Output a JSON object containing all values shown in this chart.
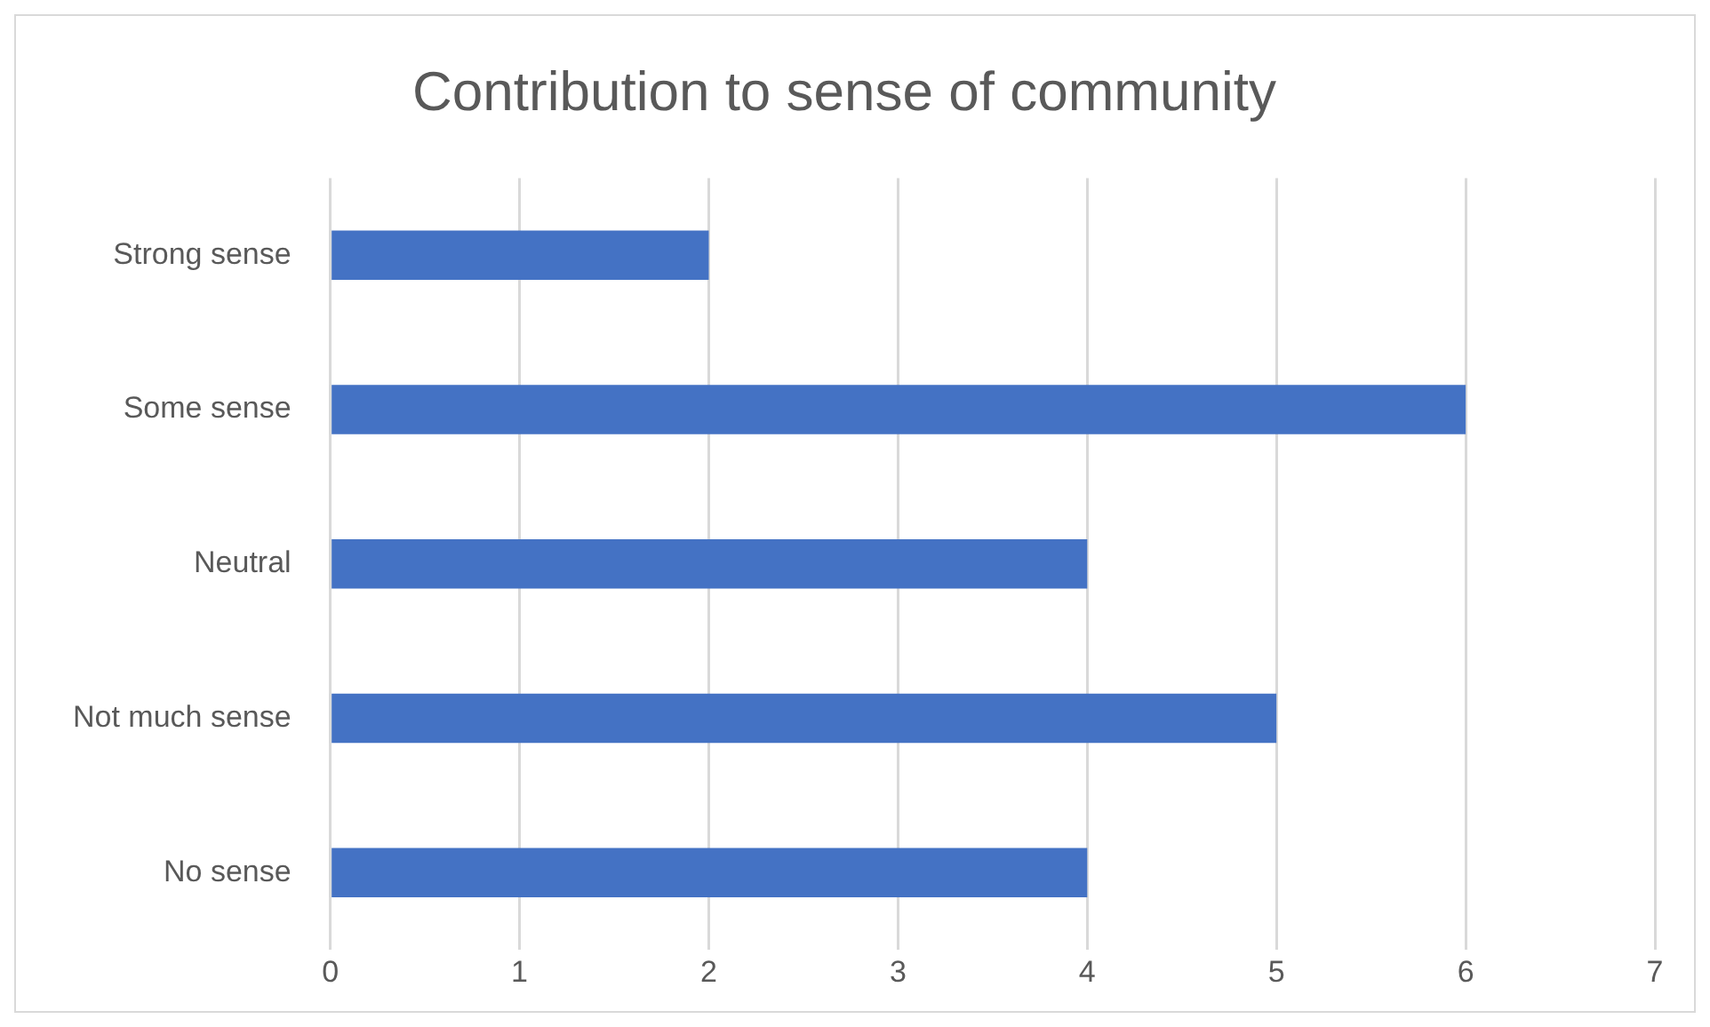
{
  "chart_data": {
    "type": "bar",
    "orientation": "horizontal",
    "title": "Contribution to sense of community",
    "categories": [
      "Strong sense",
      "Some sense",
      "Neutral",
      "Not much sense",
      "No sense"
    ],
    "values": [
      2,
      6,
      4,
      5,
      4
    ],
    "color": "#4472c4",
    "xlim": [
      0,
      7
    ],
    "xticks": [
      0,
      1,
      2,
      3,
      4,
      5,
      6,
      7
    ],
    "grid": "x"
  }
}
